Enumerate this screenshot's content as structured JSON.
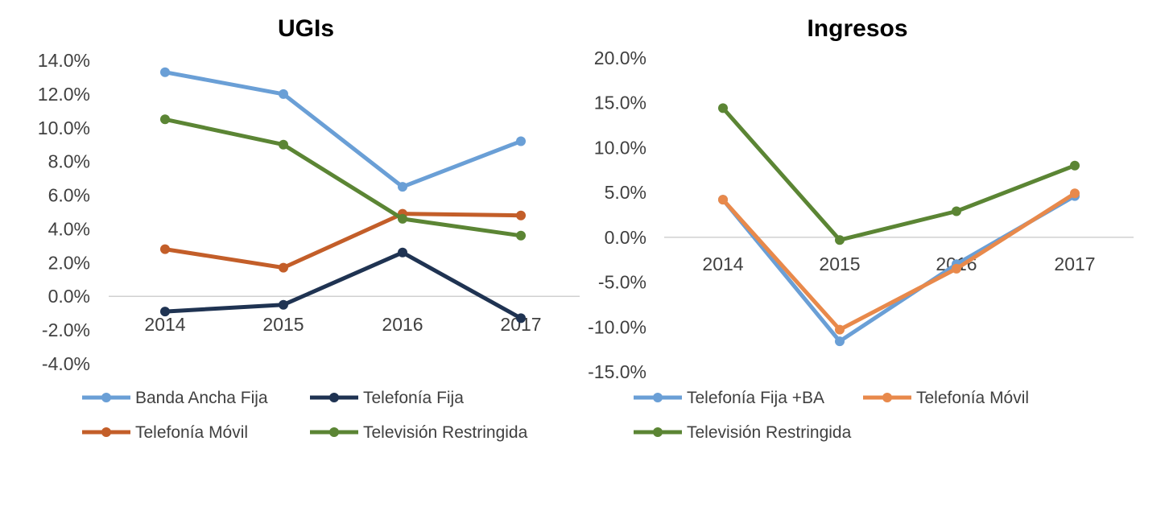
{
  "chart_data": [
    {
      "type": "line",
      "title": "UGIs",
      "categories": [
        "2014",
        "2015",
        "2016",
        "2017"
      ],
      "ylim": [
        -4.0,
        14.0
      ],
      "yticks": [
        "14.0%",
        "12.0%",
        "10.0%",
        "8.0%",
        "6.0%",
        "4.0%",
        "2.0%",
        "0.0%",
        "-2.0%",
        "-4.0%"
      ],
      "grid": false,
      "legend_position": "bottom",
      "series": [
        {
          "name": "Banda Ancha Fija",
          "color": "#6A9FD6",
          "values": [
            13.3,
            12.0,
            6.5,
            9.2
          ]
        },
        {
          "name": "Telefonía Fija",
          "color": "#1F3352",
          "values": [
            -0.9,
            -0.5,
            2.6,
            -1.3
          ]
        },
        {
          "name": "Telefonía Móvil",
          "color": "#C35E29",
          "values": [
            2.8,
            1.7,
            4.9,
            4.8
          ]
        },
        {
          "name": "Televisión Restringida",
          "color": "#5B8534",
          "values": [
            10.5,
            9.0,
            4.6,
            3.6
          ]
        }
      ]
    },
    {
      "type": "line",
      "title": "Ingresos",
      "categories": [
        "2014",
        "2015",
        "2016",
        "2017"
      ],
      "ylim": [
        -15.0,
        20.0
      ],
      "yticks": [
        "20.0%",
        "15.0%",
        "10.0%",
        "5.0%",
        "0.0%",
        "-5.0%",
        "-10.0%",
        "-15.0%"
      ],
      "grid": false,
      "legend_position": "bottom",
      "series": [
        {
          "name": "Telefonía Fija +BA",
          "color": "#6A9FD6",
          "values": [
            4.2,
            -11.6,
            -3.0,
            4.6
          ]
        },
        {
          "name": "Telefonía Móvil",
          "color": "#E8894B",
          "values": [
            4.2,
            -10.3,
            -3.5,
            4.9
          ]
        },
        {
          "name": "Televisión Restringida",
          "color": "#5B8534",
          "values": [
            14.4,
            -0.3,
            2.9,
            8.0
          ]
        }
      ]
    }
  ]
}
